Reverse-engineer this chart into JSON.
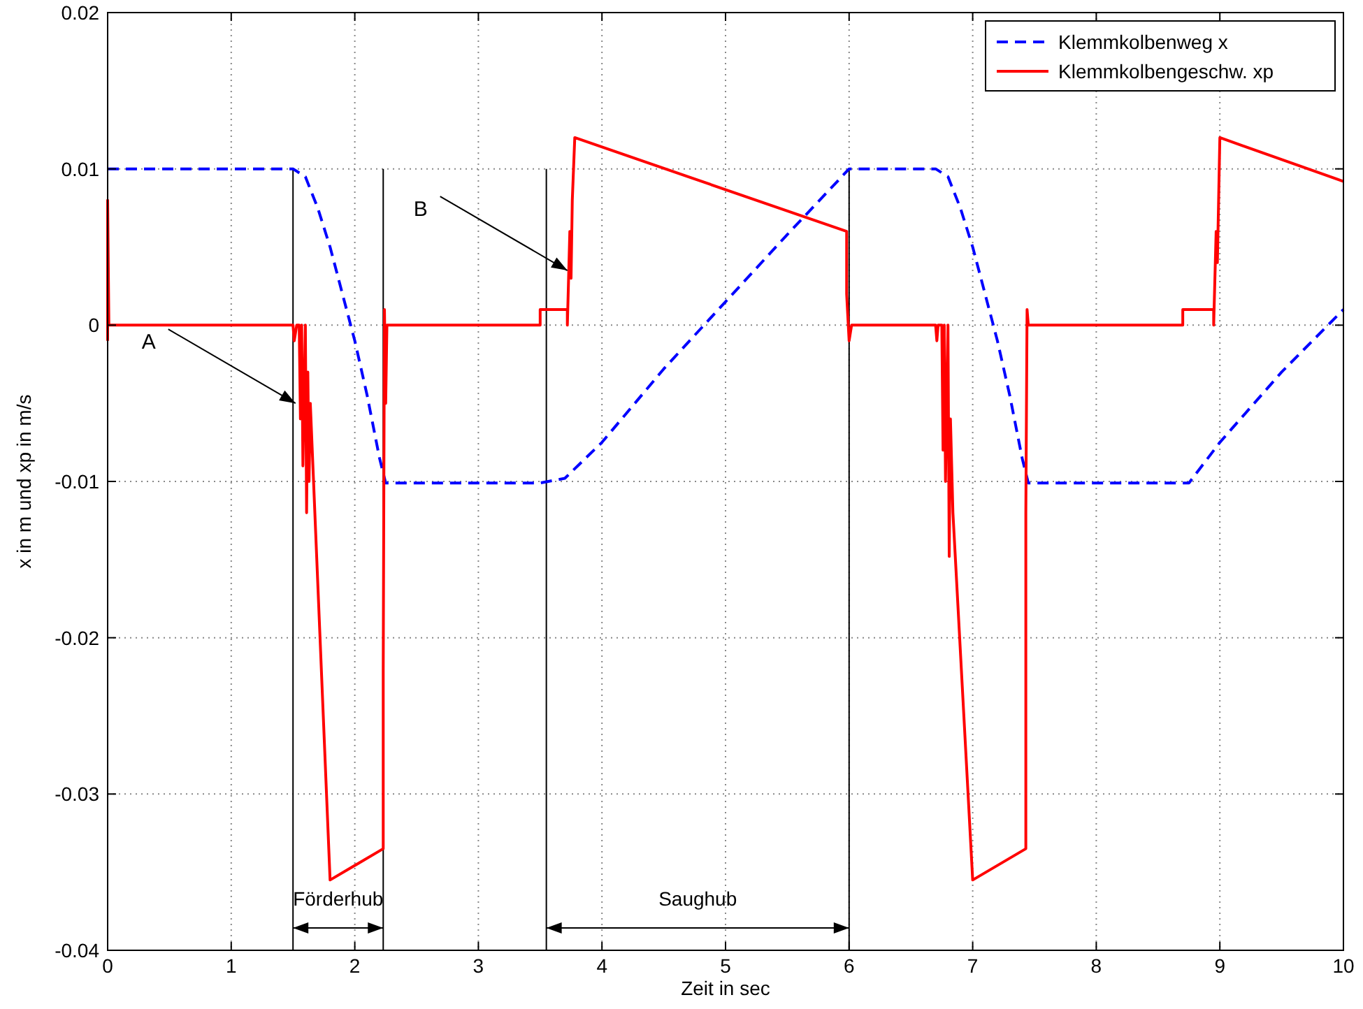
{
  "chart_data": {
    "type": "line",
    "xlabel": "Zeit in sec",
    "ylabel": "x in m und xp in m/s",
    "xlim": [
      0,
      10
    ],
    "xticks": [
      0,
      1,
      2,
      3,
      4,
      5,
      6,
      7,
      8,
      9,
      10
    ],
    "ylim": [
      -0.04,
      0.02
    ],
    "yticks": [
      -0.04,
      -0.03,
      -0.02,
      -0.01,
      0,
      0.01,
      0.02
    ],
    "grid": true,
    "legend": "top right",
    "series": [
      {
        "name": "Klemmkolbenweg x",
        "color": "#0000ff",
        "line_style": "dashed",
        "x": [
          0,
          1.5,
          1.6,
          1.7,
          1.8,
          1.9,
          2.0,
          2.1,
          2.2,
          2.25,
          3.5,
          3.7,
          4.0,
          4.5,
          5.0,
          5.5,
          6.0,
          6.7,
          6.8,
          6.9,
          7.0,
          7.1,
          7.2,
          7.3,
          7.4,
          7.45,
          8.75,
          9.0,
          9.5,
          10
        ],
        "values": [
          0.01,
          0.01,
          0.0095,
          0.0075,
          0.005,
          0.002,
          -0.001,
          -0.0045,
          -0.0085,
          -0.0101,
          -0.0101,
          -0.0098,
          -0.0075,
          -0.0028,
          0.0015,
          0.0058,
          0.01,
          0.01,
          0.0095,
          0.0075,
          0.005,
          0.002,
          -0.001,
          -0.0045,
          -0.0085,
          -0.0101,
          -0.0101,
          -0.0075,
          -0.003,
          0.001
        ]
      },
      {
        "name": "Klemmkolbengeschw. xp",
        "color": "#ff0000",
        "line_style": "solid",
        "x": [
          0,
          0,
          0.01,
          1.5,
          1.51,
          1.53,
          1.55,
          1.56,
          1.57,
          1.58,
          1.6,
          1.61,
          1.62,
          1.63,
          1.64,
          1.8,
          2.23,
          2.23,
          2.24,
          2.25,
          2.26,
          3.5,
          3.5,
          3.72,
          3.72,
          3.74,
          3.75,
          3.76,
          3.78,
          5.98,
          5.98,
          6.0,
          6.02,
          6.7,
          6.71,
          6.72,
          6.75,
          6.76,
          6.77,
          6.78,
          6.8,
          6.81,
          6.82,
          6.84,
          7.0,
          7.43,
          7.43,
          7.44,
          7.45,
          8.7,
          8.7,
          8.95,
          8.95,
          8.97,
          8.98,
          9.0,
          10
        ],
        "values": [
          -0.001,
          0.008,
          0,
          0,
          -0.001,
          0,
          0,
          -0.006,
          0,
          -0.009,
          0,
          -0.012,
          -0.003,
          -0.01,
          -0.005,
          -0.0355,
          -0.0335,
          -0.022,
          0.001,
          -0.005,
          0,
          0,
          0.001,
          0.001,
          0,
          0.006,
          0.003,
          0.008,
          0.012,
          0.006,
          0.002,
          -0.001,
          0,
          0,
          -0.001,
          0,
          0,
          -0.008,
          0,
          -0.01,
          0,
          -0.0148,
          -0.006,
          -0.012,
          -0.0355,
          -0.0335,
          -0.012,
          0.001,
          0,
          0,
          0.001,
          0.001,
          0,
          0.006,
          0.004,
          0.012,
          0.0092
        ]
      }
    ],
    "ref_lines": [
      {
        "axis": "x",
        "value": 1.5,
        "color": "#000000"
      },
      {
        "axis": "x",
        "value": 2.23,
        "color": "#000000"
      },
      {
        "axis": "x",
        "value": 3.55,
        "color": "#000000"
      },
      {
        "axis": "x",
        "value": 6.0,
        "color": "#000000"
      }
    ],
    "annotations": [
      {
        "text": "A",
        "x": 1.52,
        "y": -0.005
      },
      {
        "text": "B",
        "x": 3.72,
        "y": 0.0035
      },
      "Förderhub",
      "Saughub"
    ]
  }
}
